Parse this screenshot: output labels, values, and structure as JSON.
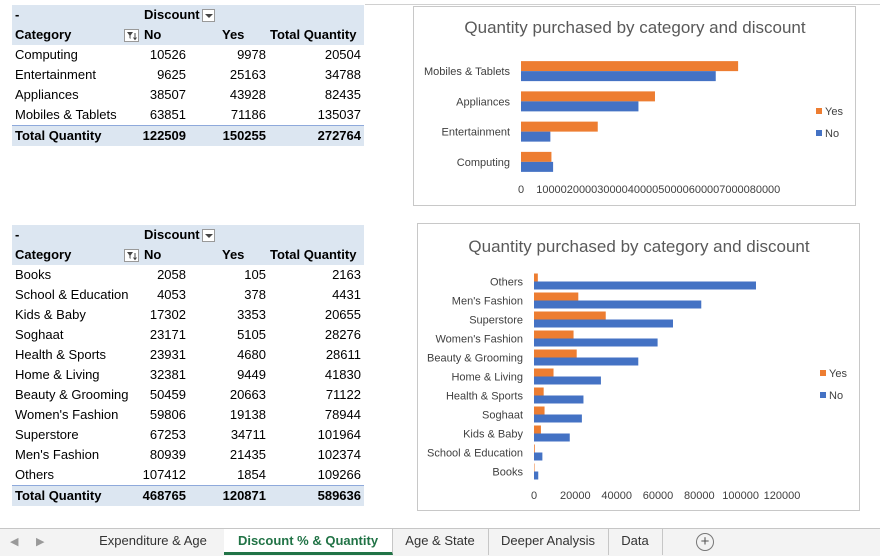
{
  "pivot1": {
    "corner": "-",
    "col_field": "Discount",
    "row_header": "Category",
    "col_no": "No",
    "col_yes": "Yes",
    "col_total": "Total Quantity",
    "rows": [
      {
        "category": "Computing",
        "no": "10526",
        "yes": "9978",
        "total": "20504"
      },
      {
        "category": "Entertainment",
        "no": "9625",
        "yes": "25163",
        "total": "34788"
      },
      {
        "category": "Appliances",
        "no": "38507",
        "yes": "43928",
        "total": "82435"
      },
      {
        "category": "Mobiles & Tablets",
        "no": "63851",
        "yes": "71186",
        "total": "135037"
      }
    ],
    "total_row": {
      "label": "Total Quantity",
      "no": "122509",
      "yes": "150255",
      "total": "272764"
    }
  },
  "pivot2": {
    "corner": "-",
    "col_field": "Discount",
    "row_header": "Category",
    "col_no": "No",
    "col_yes": "Yes",
    "col_total": "Total Quantity",
    "rows": [
      {
        "category": "Books",
        "no": "2058",
        "yes": "105",
        "total": "2163"
      },
      {
        "category": "School & Education",
        "no": "4053",
        "yes": "378",
        "total": "4431"
      },
      {
        "category": "Kids & Baby",
        "no": "17302",
        "yes": "3353",
        "total": "20655"
      },
      {
        "category": "Soghaat",
        "no": "23171",
        "yes": "5105",
        "total": "28276"
      },
      {
        "category": "Health & Sports",
        "no": "23931",
        "yes": "4680",
        "total": "28611"
      },
      {
        "category": "Home & Living",
        "no": "32381",
        "yes": "9449",
        "total": "41830"
      },
      {
        "category": "Beauty & Grooming",
        "no": "50459",
        "yes": "20663",
        "total": "71122"
      },
      {
        "category": "Women's Fashion",
        "no": "59806",
        "yes": "19138",
        "total": "78944"
      },
      {
        "category": "Superstore",
        "no": "67253",
        "yes": "34711",
        "total": "101964"
      },
      {
        "category": "Men's Fashion",
        "no": "80939",
        "yes": "21435",
        "total": "102374"
      },
      {
        "category": "Others",
        "no": "107412",
        "yes": "1854",
        "total": "109266"
      }
    ],
    "total_row": {
      "label": "Total Quantity",
      "no": "468765",
      "yes": "120871",
      "total": "589636"
    }
  },
  "chart_data": [
    {
      "type": "bar",
      "orientation": "horizontal",
      "title": "Quantity purchased by category and discount",
      "categories": [
        "Mobiles & Tablets",
        "Appliances",
        "Entertainment",
        "Computing"
      ],
      "series": [
        {
          "name": "Yes",
          "color": "#ed7d31",
          "values": [
            71186,
            43928,
            25163,
            9978
          ]
        },
        {
          "name": "No",
          "color": "#4472c4",
          "values": [
            63851,
            38507,
            9625,
            10526
          ]
        }
      ],
      "xlim": [
        0,
        80000
      ],
      "xticks": [
        "0",
        "10000",
        "20000",
        "30000",
        "40000",
        "50000",
        "60000",
        "70000",
        "80000"
      ],
      "legend": [
        "Yes",
        "No"
      ],
      "legend_position": "right"
    },
    {
      "type": "bar",
      "orientation": "horizontal",
      "title": "Quantity purchased by category and discount",
      "categories": [
        "Others",
        "Men's Fashion",
        "Superstore",
        "Women's Fashion",
        "Beauty & Grooming",
        "Home & Living",
        "Health & Sports",
        "Soghaat",
        "Kids & Baby",
        "School & Education",
        "Books"
      ],
      "series": [
        {
          "name": "Yes",
          "color": "#ed7d31",
          "values": [
            1854,
            21435,
            34711,
            19138,
            20663,
            9449,
            4680,
            5105,
            3353,
            378,
            105
          ]
        },
        {
          "name": "No",
          "color": "#4472c4",
          "values": [
            107412,
            80939,
            67253,
            59806,
            50459,
            32381,
            23931,
            23171,
            17302,
            4053,
            2058
          ]
        }
      ],
      "xlim": [
        0,
        120000
      ],
      "xticks": [
        "0",
        "20000",
        "40000",
        "60000",
        "80000",
        "100000",
        "120000"
      ],
      "legend": [
        "Yes",
        "No"
      ],
      "legend_position": "right"
    }
  ],
  "tabs": {
    "items": [
      "Expenditure & Age",
      "Discount % & Quantity",
      "Age & State",
      "Deeper Analysis",
      "Data"
    ],
    "active": "Discount % & Quantity",
    "add_label": "+",
    "prev_icon": "chevron-left-icon",
    "next_icon": "chevron-right-icon"
  }
}
